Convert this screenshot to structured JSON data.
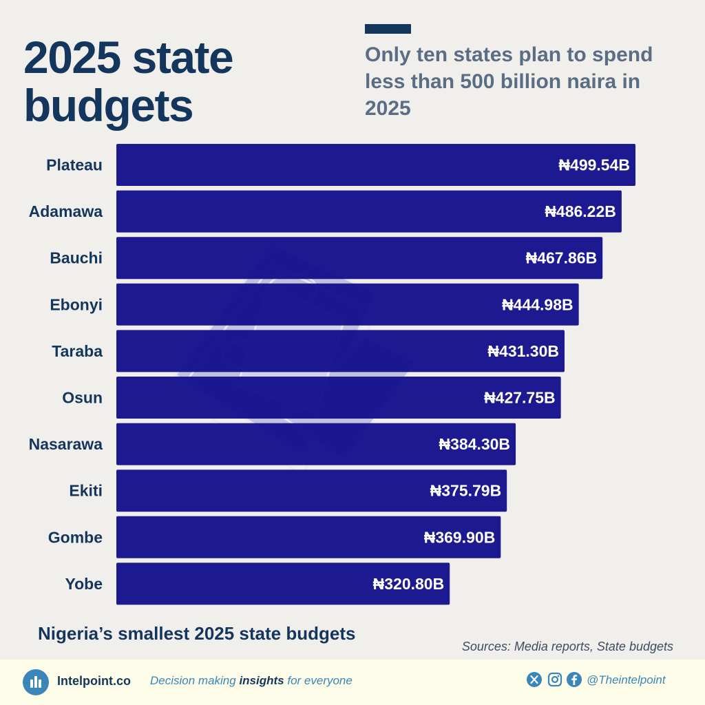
{
  "header": {
    "title": "2025 state budgets",
    "subtitle": "Only ten states plan to spend less than 500 billion naira in 2025"
  },
  "chart_data": {
    "type": "bar",
    "orientation": "horizontal",
    "title": "Nigeria’s smallest 2025 state budgets",
    "categories": [
      "Plateau",
      "Adamawa",
      "Bauchi",
      "Ebonyi",
      "Taraba",
      "Osun",
      "Nasarawa",
      "Ekiti",
      "Gombe",
      "Yobe"
    ],
    "values": [
      499.54,
      486.22,
      467.86,
      444.98,
      431.3,
      427.75,
      384.3,
      375.79,
      369.9,
      320.8
    ],
    "value_labels": [
      "₦499.54B",
      "₦486.22B",
      "₦467.86B",
      "₦444.98B",
      "₦431.30B",
      "₦427.75B",
      "₦384.30B",
      "₦375.79B",
      "₦369.90B",
      "₦320.80B"
    ],
    "bar_color": "#0d0a8a",
    "grid": false,
    "legend": "none"
  },
  "sources": "Sources: Media reports, State budgets",
  "footer": {
    "brand": "Intelpoint.co",
    "tagline_pre": "Decision making ",
    "tagline_bold": "insights",
    "tagline_post": " for everyone",
    "handle": "@Theintelpoint",
    "icons": [
      "x-icon",
      "instagram-icon",
      "facebook-icon"
    ]
  },
  "colors": {
    "background": "#f1efec",
    "title": "#14365c",
    "subtitle": "#5a6d85",
    "footer_background": "#fdfce9",
    "accent": "#3a86b8"
  }
}
